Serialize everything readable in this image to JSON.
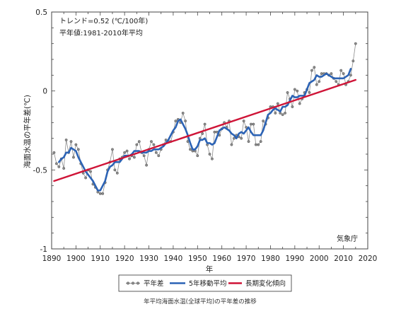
{
  "chart_data": {
    "type": "line",
    "xlabel": "年",
    "ylabel": "海面水温の平年差(℃)",
    "caption": "年平均海面水温(全球平均)の平年差の推移",
    "annotations": {
      "trend": "トレンド=0.52 (℃/100年)",
      "normal": "平年値:1981-2010年平均",
      "source": "気象庁"
    },
    "xlim": [
      1890,
      2020
    ],
    "ylim": [
      -1,
      0.5
    ],
    "xticks": [
      1890,
      1900,
      1910,
      1920,
      1930,
      1940,
      1950,
      1960,
      1970,
      1980,
      1990,
      2000,
      2010,
      2020
    ],
    "yticks": [
      0.5,
      0,
      -0.5,
      -1
    ],
    "grid": false,
    "legend_placement": "bottom",
    "series": [
      {
        "name": "平年差",
        "color": "#8c8c8c",
        "markers": true,
        "x": [
          1891,
          1892,
          1893,
          1894,
          1895,
          1896,
          1897,
          1898,
          1899,
          1900,
          1901,
          1902,
          1903,
          1904,
          1905,
          1906,
          1907,
          1908,
          1909,
          1910,
          1911,
          1912,
          1913,
          1914,
          1915,
          1916,
          1917,
          1918,
          1919,
          1920,
          1921,
          1922,
          1923,
          1924,
          1925,
          1926,
          1927,
          1928,
          1929,
          1930,
          1931,
          1932,
          1933,
          1934,
          1935,
          1936,
          1937,
          1938,
          1939,
          1940,
          1941,
          1942,
          1943,
          1944,
          1945,
          1946,
          1947,
          1948,
          1949,
          1950,
          1951,
          1952,
          1953,
          1954,
          1955,
          1956,
          1957,
          1958,
          1959,
          1960,
          1961,
          1962,
          1963,
          1964,
          1965,
          1966,
          1967,
          1968,
          1969,
          1970,
          1971,
          1972,
          1973,
          1974,
          1975,
          1976,
          1977,
          1978,
          1979,
          1980,
          1981,
          1982,
          1983,
          1984,
          1985,
          1986,
          1987,
          1988,
          1989,
          1990,
          1991,
          1992,
          1993,
          1994,
          1995,
          1996,
          1997,
          1998,
          1999,
          2000,
          2001,
          2002,
          2003,
          2004,
          2005,
          2006,
          2007,
          2008,
          2009,
          2010,
          2011,
          2012,
          2013,
          2014,
          2015
        ],
        "y": [
          -0.39,
          -0.46,
          -0.48,
          -0.43,
          -0.49,
          -0.31,
          -0.39,
          -0.32,
          -0.42,
          -0.34,
          -0.37,
          -0.46,
          -0.52,
          -0.55,
          -0.5,
          -0.51,
          -0.59,
          -0.61,
          -0.64,
          -0.65,
          -0.65,
          -0.58,
          -0.5,
          -0.45,
          -0.37,
          -0.5,
          -0.52,
          -0.43,
          -0.42,
          -0.39,
          -0.38,
          -0.43,
          -0.41,
          -0.42,
          -0.34,
          -0.32,
          -0.39,
          -0.41,
          -0.47,
          -0.37,
          -0.32,
          -0.34,
          -0.39,
          -0.41,
          -0.37,
          -0.34,
          -0.31,
          -0.32,
          -0.32,
          -0.26,
          -0.19,
          -0.18,
          -0.2,
          -0.14,
          -0.19,
          -0.32,
          -0.37,
          -0.38,
          -0.38,
          -0.41,
          -0.3,
          -0.27,
          -0.21,
          -0.34,
          -0.4,
          -0.43,
          -0.26,
          -0.26,
          -0.28,
          -0.24,
          -0.2,
          -0.23,
          -0.19,
          -0.34,
          -0.3,
          -0.28,
          -0.29,
          -0.3,
          -0.19,
          -0.23,
          -0.32,
          -0.21,
          -0.21,
          -0.34,
          -0.34,
          -0.32,
          -0.19,
          -0.21,
          -0.17,
          -0.1,
          -0.1,
          -0.14,
          -0.08,
          -0.14,
          -0.15,
          -0.14,
          -0.01,
          -0.05,
          -0.1,
          0.01,
          0.0,
          -0.08,
          -0.05,
          -0.01,
          0.01,
          -0.01,
          0.13,
          0.15,
          0.04,
          0.06,
          0.11,
          0.11,
          0.11,
          0.1,
          0.11,
          0.08,
          0.06,
          0.04,
          0.13,
          0.11,
          0.04,
          0.06,
          0.1,
          0.19,
          0.3
        ]
      },
      {
        "name": "5年移動平均",
        "color": "#2c63b5",
        "markers": false,
        "x": [
          1893,
          1894,
          1895,
          1896,
          1897,
          1898,
          1899,
          1900,
          1901,
          1902,
          1903,
          1904,
          1905,
          1906,
          1907,
          1908,
          1909,
          1910,
          1911,
          1912,
          1913,
          1914,
          1915,
          1916,
          1917,
          1918,
          1919,
          1920,
          1921,
          1922,
          1923,
          1924,
          1925,
          1926,
          1927,
          1928,
          1929,
          1930,
          1931,
          1932,
          1933,
          1934,
          1935,
          1936,
          1937,
          1938,
          1939,
          1940,
          1941,
          1942,
          1943,
          1944,
          1945,
          1946,
          1947,
          1948,
          1949,
          1950,
          1951,
          1952,
          1953,
          1954,
          1955,
          1956,
          1957,
          1958,
          1959,
          1960,
          1961,
          1962,
          1963,
          1964,
          1965,
          1966,
          1967,
          1968,
          1969,
          1970,
          1971,
          1972,
          1973,
          1974,
          1975,
          1976,
          1977,
          1978,
          1979,
          1980,
          1981,
          1982,
          1983,
          1984,
          1985,
          1986,
          1987,
          1988,
          1989,
          1990,
          1991,
          1992,
          1993,
          1994,
          1995,
          1996,
          1997,
          1998,
          1999,
          2000,
          2001,
          2002,
          2003,
          2004,
          2005,
          2006,
          2007,
          2008,
          2009,
          2010,
          2011,
          2012,
          2013
        ],
        "y": [
          -0.45,
          -0.43,
          -0.42,
          -0.39,
          -0.39,
          -0.36,
          -0.37,
          -0.38,
          -0.42,
          -0.45,
          -0.48,
          -0.51,
          -0.53,
          -0.55,
          -0.57,
          -0.6,
          -0.63,
          -0.63,
          -0.6,
          -0.57,
          -0.51,
          -0.48,
          -0.47,
          -0.45,
          -0.45,
          -0.45,
          -0.43,
          -0.41,
          -0.41,
          -0.41,
          -0.4,
          -0.38,
          -0.38,
          -0.38,
          -0.39,
          -0.39,
          -0.39,
          -0.38,
          -0.38,
          -0.37,
          -0.37,
          -0.37,
          -0.36,
          -0.35,
          -0.33,
          -0.31,
          -0.28,
          -0.25,
          -0.23,
          -0.19,
          -0.18,
          -0.21,
          -0.24,
          -0.28,
          -0.33,
          -0.37,
          -0.37,
          -0.35,
          -0.31,
          -0.31,
          -0.3,
          -0.33,
          -0.33,
          -0.34,
          -0.33,
          -0.29,
          -0.25,
          -0.24,
          -0.23,
          -0.24,
          -0.25,
          -0.27,
          -0.28,
          -0.3,
          -0.27,
          -0.26,
          -0.27,
          -0.25,
          -0.23,
          -0.26,
          -0.28,
          -0.28,
          -0.28,
          -0.28,
          -0.25,
          -0.2,
          -0.15,
          -0.14,
          -0.12,
          -0.11,
          -0.12,
          -0.13,
          -0.1,
          -0.1,
          -0.09,
          -0.06,
          -0.03,
          -0.04,
          -0.04,
          -0.03,
          -0.03,
          -0.03,
          0.01,
          0.05,
          0.06,
          0.07,
          0.1,
          0.09,
          0.09,
          0.1,
          0.11,
          0.1,
          0.09,
          0.08,
          0.08,
          0.08,
          0.08,
          0.08,
          0.09,
          0.1,
          0.14
        ]
      },
      {
        "name": "長期変化傾向",
        "color": "#cf1437",
        "markers": false,
        "x": [
          1891,
          2015
        ],
        "y": [
          -0.57,
          0.07
        ]
      }
    ]
  }
}
